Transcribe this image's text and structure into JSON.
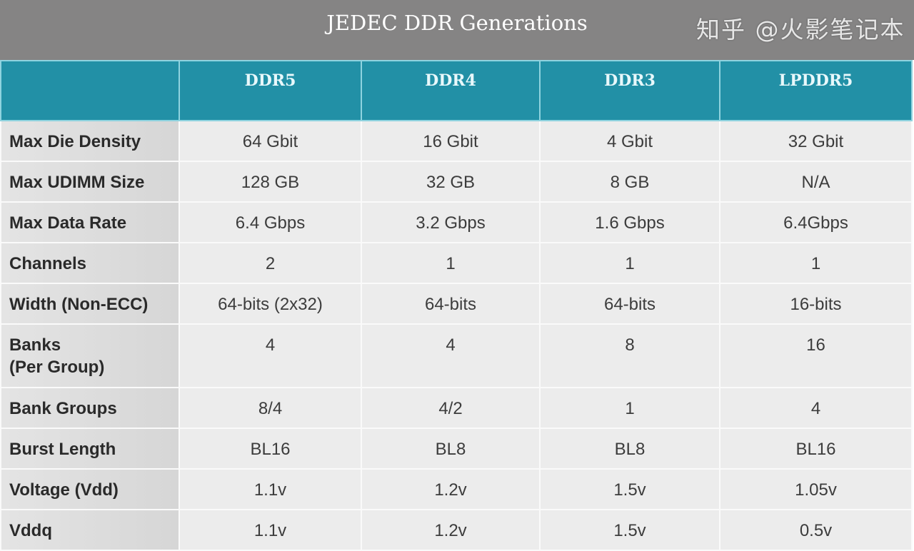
{
  "title": "JEDEC DDR Generations",
  "columns": [
    "",
    "DDR5",
    "DDR4",
    "DDR3",
    "LPDDR5"
  ],
  "rows": [
    {
      "label": "Max Die Density",
      "values": [
        "64 Gbit",
        "16 Gbit",
        "4 Gbit",
        "32 Gbit"
      ]
    },
    {
      "label": "Max UDIMM Size",
      "values": [
        "128 GB",
        "32 GB",
        "8 GB",
        "N/A"
      ]
    },
    {
      "label": "Max Data Rate",
      "values": [
        "6.4 Gbps",
        "3.2 Gbps",
        "1.6 Gbps",
        "6.4Gbps"
      ]
    },
    {
      "label": "Channels",
      "values": [
        "2",
        "1",
        "1",
        "1"
      ]
    },
    {
      "label": "Width (Non-ECC)",
      "values": [
        "64-bits (2x32)",
        "64-bits",
        "64-bits",
        "16-bits"
      ]
    },
    {
      "label": "Banks",
      "label2": "(Per Group)",
      "values": [
        "4",
        "4",
        "8",
        "16"
      ]
    },
    {
      "label": "Bank Groups",
      "values": [
        "8/4",
        "4/2",
        "1",
        "4"
      ]
    },
    {
      "label": "Burst Length",
      "values": [
        "BL16",
        "BL8",
        "BL8",
        "BL16"
      ]
    },
    {
      "label": "Voltage (Vdd)",
      "values": [
        "1.1v",
        "1.2v",
        "1.5v",
        "1.05v"
      ]
    },
    {
      "label": "Vddq",
      "values": [
        "1.1v",
        "1.2v",
        "1.5v",
        "0.5v"
      ]
    }
  ],
  "watermark": "知乎 @火影笔记本",
  "colors": {
    "title_bar": "#858484",
    "header": "#2290a6",
    "label_cell": "#dcdcdc",
    "value_cell": "#ececec"
  }
}
